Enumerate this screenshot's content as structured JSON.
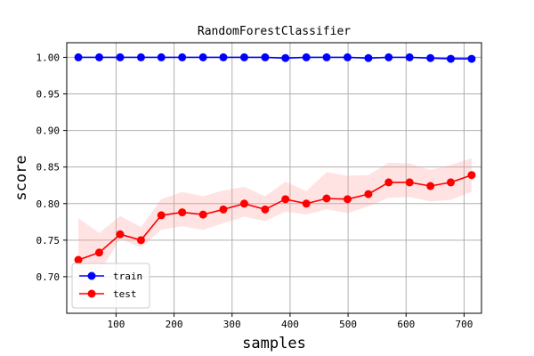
{
  "chart_data": {
    "type": "line",
    "title": "RandomForestClassifier",
    "xlabel": "samples",
    "ylabel": "score",
    "xlim": [
      15,
      730
    ],
    "ylim": [
      0.65,
      1.02
    ],
    "xticks": [
      100,
      200,
      300,
      400,
      500,
      600,
      700
    ],
    "yticks": [
      0.7,
      0.75,
      0.8,
      0.85,
      0.9,
      0.95,
      1.0
    ],
    "ytick_format": 2,
    "grid": true,
    "legend": {
      "placement": "lower-left"
    },
    "x": [
      35,
      71,
      107,
      143,
      178,
      214,
      250,
      285,
      321,
      357,
      392,
      428,
      463,
      499,
      535,
      570,
      606,
      642,
      677,
      713
    ],
    "series": [
      {
        "name": "train",
        "color": "#0000ff",
        "values": [
          1.0,
          1.0,
          1.0,
          1.0,
          1.0,
          1.0,
          1.0,
          1.0,
          1.0,
          1.0,
          0.999,
          1.0,
          1.0,
          1.0,
          0.999,
          1.0,
          1.0,
          0.999,
          0.998,
          0.998
        ],
        "band_low": [
          1.0,
          1.0,
          1.0,
          1.0,
          1.0,
          1.0,
          1.0,
          1.0,
          1.0,
          1.0,
          0.998,
          1.0,
          1.0,
          1.0,
          0.998,
          1.0,
          1.0,
          0.998,
          0.997,
          0.997
        ],
        "band_high": [
          1.0,
          1.0,
          1.0,
          1.0,
          1.0,
          1.0,
          1.0,
          1.0,
          1.0,
          1.0,
          1.0,
          1.0,
          1.0,
          1.0,
          1.0,
          1.0,
          1.0,
          1.0,
          1.0,
          1.0
        ]
      },
      {
        "name": "test",
        "color": "#ff0000",
        "band_color": "#ff9999",
        "values": [
          0.723,
          0.733,
          0.758,
          0.75,
          0.784,
          0.788,
          0.785,
          0.792,
          0.8,
          0.792,
          0.806,
          0.8,
          0.807,
          0.806,
          0.813,
          0.829,
          0.829,
          0.824,
          0.829,
          0.839
        ],
        "band_low": [
          0.662,
          0.705,
          0.752,
          0.74,
          0.764,
          0.769,
          0.764,
          0.773,
          0.782,
          0.776,
          0.789,
          0.785,
          0.792,
          0.787,
          0.796,
          0.808,
          0.809,
          0.803,
          0.805,
          0.816
        ],
        "band_high": [
          0.78,
          0.76,
          0.783,
          0.768,
          0.806,
          0.816,
          0.81,
          0.818,
          0.823,
          0.81,
          0.83,
          0.817,
          0.843,
          0.838,
          0.839,
          0.856,
          0.855,
          0.846,
          0.853,
          0.862
        ]
      }
    ]
  }
}
